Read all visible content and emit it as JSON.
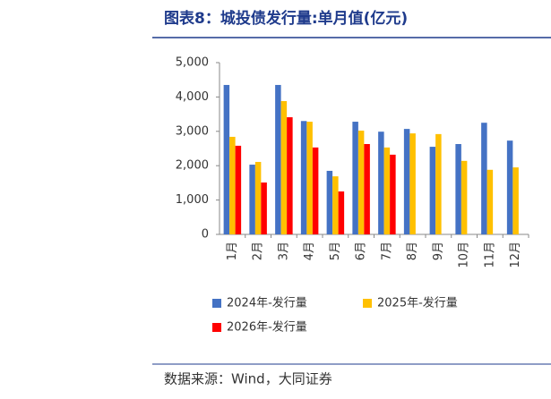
{
  "chart_data": {
    "type": "bar",
    "title": "图表8：城投债发行量:单月值(亿元)",
    "source": "数据来源：Wind，大同证券",
    "categories": [
      "1月",
      "2月",
      "3月",
      "4月",
      "5月",
      "6月",
      "7月",
      "8月",
      "9月",
      "10月",
      "11月",
      "12月"
    ],
    "series": [
      {
        "name": "2024年-发行量",
        "color": "#4472c4",
        "values": [
          4350,
          2030,
          4350,
          3300,
          1850,
          3280,
          2990,
          3070,
          2550,
          2630,
          3250,
          2730
        ]
      },
      {
        "name": "2025年-发行量",
        "color": "#ffc000",
        "values": [
          2840,
          2110,
          3880,
          3280,
          1690,
          3020,
          2530,
          2940,
          2920,
          2140,
          1880,
          1950
        ]
      },
      {
        "name": "2026年-发行量",
        "color": "#ff0000",
        "values": [
          2580,
          1510,
          3410,
          2530,
          1250,
          2630,
          2320,
          null,
          null,
          null,
          null,
          null
        ]
      }
    ],
    "ylim": [
      0,
      5000
    ],
    "yticks": [
      0,
      {
        "value": 1000,
        "label": "1,000"
      },
      {
        "value": 2000,
        "label": "2,000"
      },
      {
        "value": 3000,
        "label": "3,000"
      },
      {
        "value": 4000,
        "label": "4,000"
      },
      {
        "value": 5000,
        "label": "5,000"
      }
    ]
  }
}
